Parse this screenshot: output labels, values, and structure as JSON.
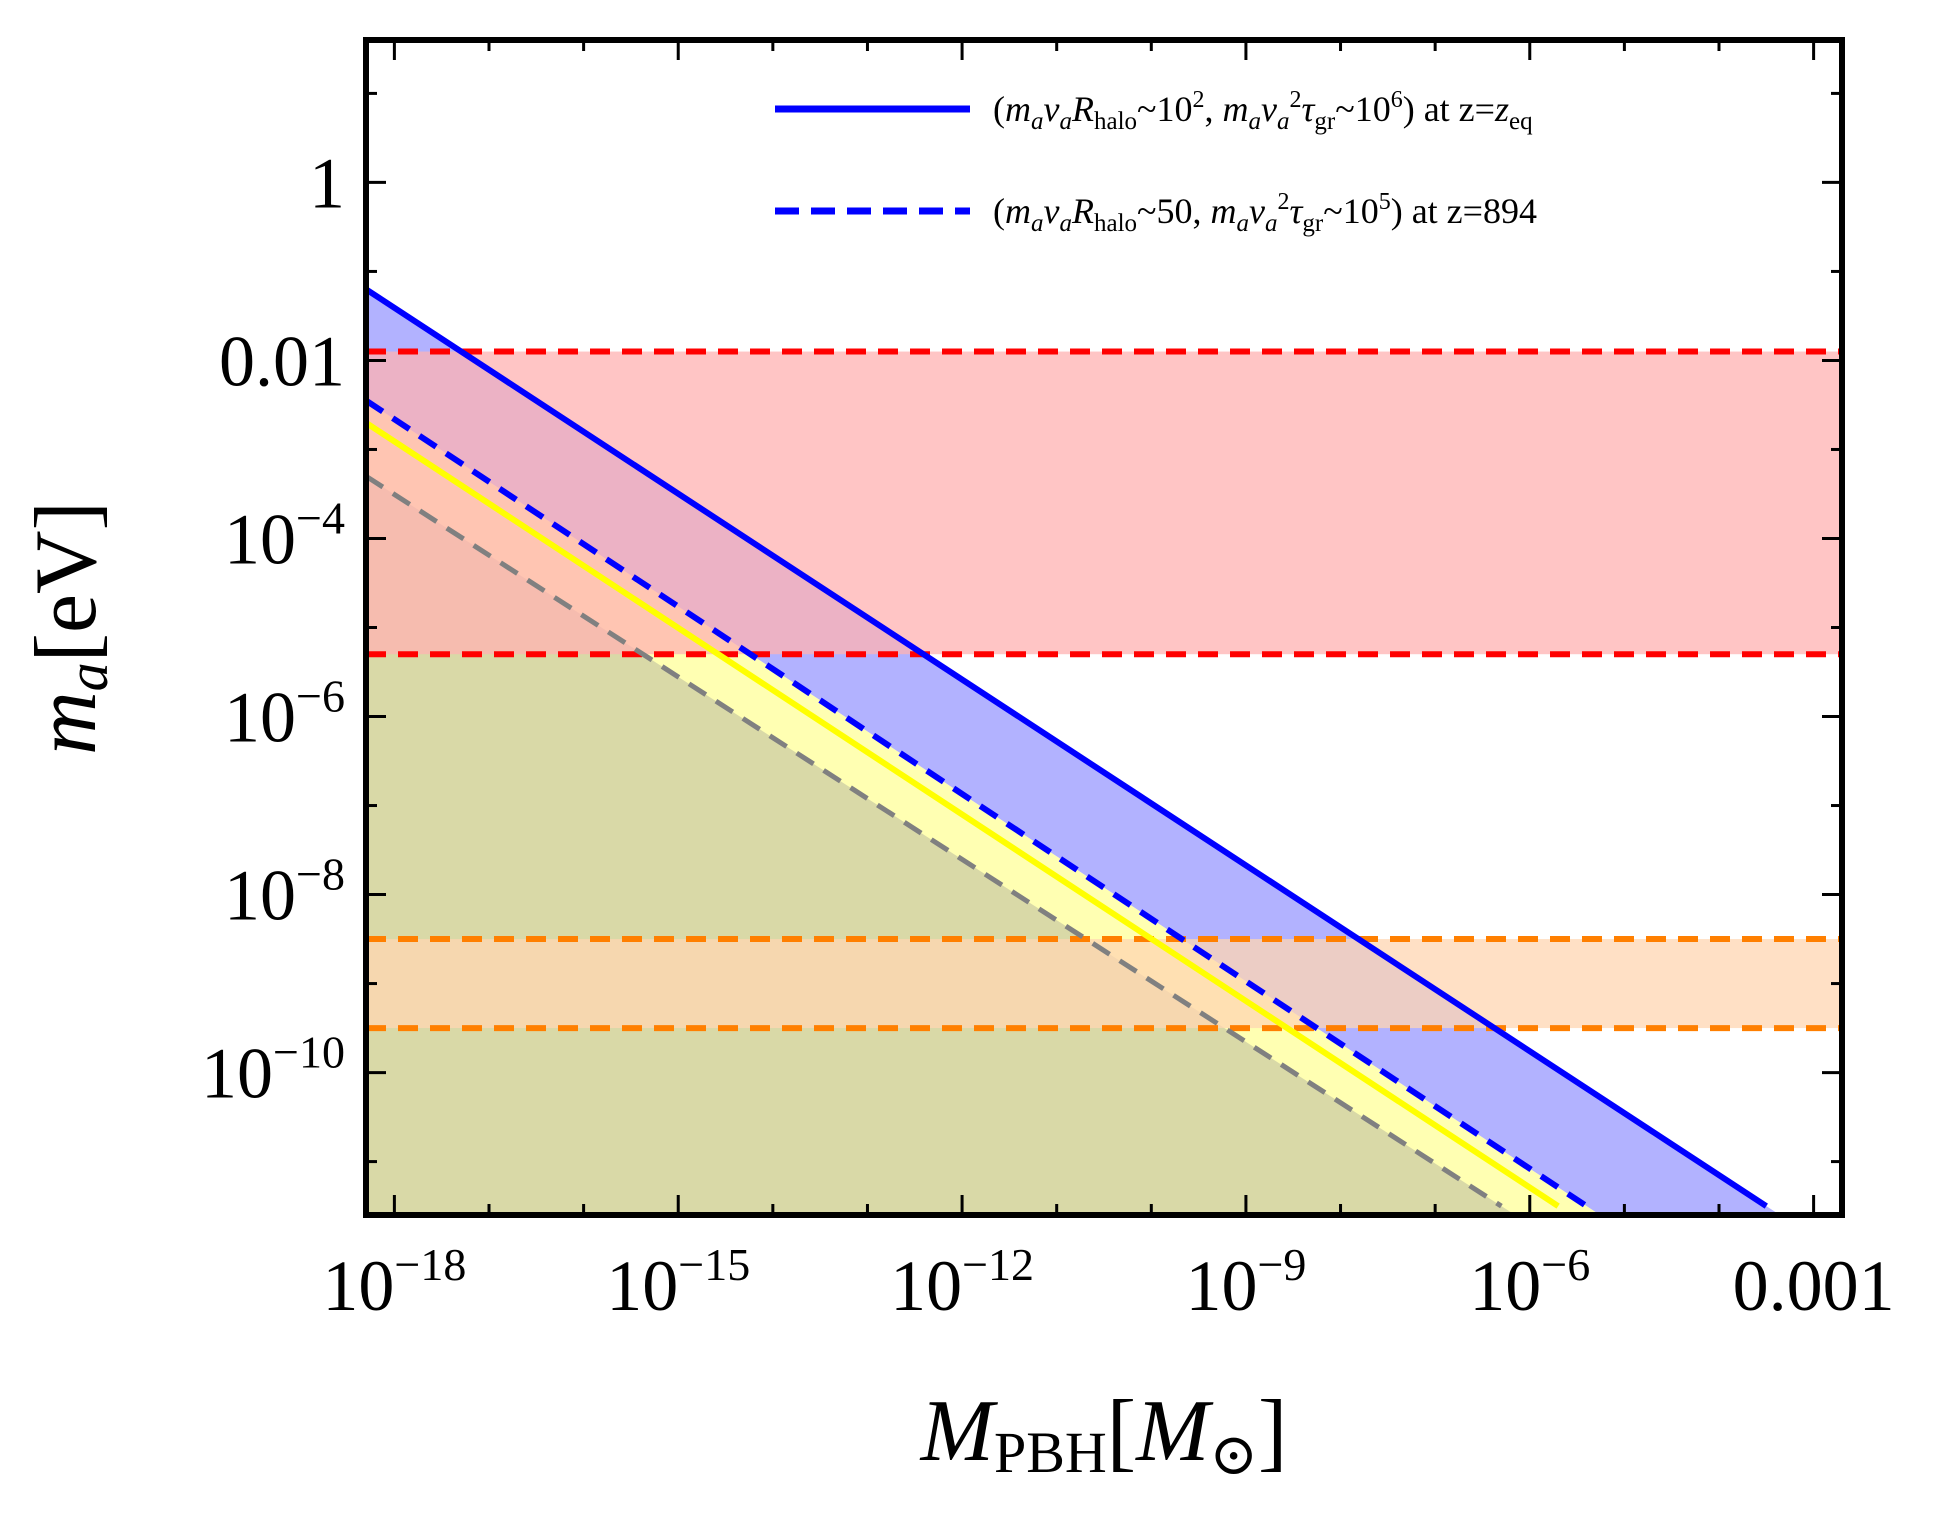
{
  "chart_data": {
    "type": "line",
    "title": "",
    "xscale": "log",
    "yscale": "log",
    "xlim_log10": [
      -18.3,
      -2.7
    ],
    "ylim_log10": [
      -11.6,
      1.6
    ],
    "xlabel": {
      "main": "M",
      "sub": "PBH",
      "unit_open": "[",
      "unit": "M",
      "unit_close": "]",
      "unit_sub": "⊙"
    },
    "ylabel": {
      "main": "m",
      "sub": "a",
      "unit": "[eV]"
    },
    "xticks": [
      {
        "log10": -18,
        "base": "10",
        "exp": "−18"
      },
      {
        "log10": -15,
        "base": "10",
        "exp": "−15"
      },
      {
        "log10": -12,
        "base": "10",
        "exp": "−12"
      },
      {
        "log10": -9,
        "base": "10",
        "exp": "−9"
      },
      {
        "log10": -6,
        "base": "10",
        "exp": "−6"
      },
      {
        "log10": -3,
        "base": "0.001",
        "exp": ""
      }
    ],
    "yticks": [
      {
        "log10": 0,
        "base": "1",
        "exp": ""
      },
      {
        "log10": -2,
        "base": "0.01",
        "exp": ""
      },
      {
        "log10": -4,
        "base": "10",
        "exp": "−4"
      },
      {
        "log10": -6,
        "base": "10",
        "exp": "−6"
      },
      {
        "log10": -8,
        "base": "10",
        "exp": "−8"
      },
      {
        "log10": -10,
        "base": "10",
        "exp": "−10"
      }
    ],
    "series": [
      {
        "name": "(m_a v_a R_halo ~ 10^2, m_a v_a^2 tau_gr ~ 10^6) at z=z_eq",
        "style": "solid",
        "color": "#0000ff",
        "x_log10": [
          -18.3,
          -3.5
        ],
        "y_log10": [
          -1.2,
          -11.5
        ]
      },
      {
        "name": "(m_a v_a R_halo ~ 50, m_a v_a^2 tau_gr ~ 10^5) at z=894",
        "style": "dashed",
        "color": "#0000ff",
        "x_log10": [
          -18.3,
          -5.4
        ],
        "y_log10": [
          -2.45,
          -11.5
        ]
      },
      {
        "name": "yellow boundary",
        "style": "solid",
        "color": "#ffff00",
        "x_log10": [
          -18.3,
          -5.7
        ],
        "y_log10": [
          -2.7,
          -11.5
        ]
      },
      {
        "name": "gray boundary",
        "style": "dashed",
        "color": "#808080",
        "x_log10": [
          -18.3,
          -6.3
        ],
        "y_log10": [
          -3.3,
          -11.5
        ]
      }
    ],
    "bands": [
      {
        "name": "red band",
        "color": "#ff0000",
        "fill": "#ffb2b2",
        "ymin_log10": -5.3,
        "ymax_log10": -1.9
      },
      {
        "name": "orange band",
        "color": "#ff7f00",
        "fill": "#ffd5b2",
        "ymin_log10": -9.5,
        "ymax_log10": -8.5
      }
    ],
    "legend": {
      "placement": "top-right",
      "entries": [
        {
          "style": "solid",
          "color": "#0000ff",
          "p1": "(",
          "m": "m",
          "m_sub": "a",
          "v": "v",
          "v_sub": "a",
          "R": "R",
          "R_sub": "halo",
          "rel1": "~10",
          "rel1_sup": "2",
          "sep": ", ",
          "m2": "m",
          "m2_sub": "a",
          "v2": "v",
          "v2_sub": "a",
          "v2_sup": "2",
          "tau": "τ",
          "tau_sub": "gr",
          "rel2": "~10",
          "rel2_sup": "6",
          "tail_text": ") at z=",
          "tail_italic": "z",
          "tail_italic_sub": "eq"
        },
        {
          "style": "dashed",
          "color": "#0000ff",
          "p1": "(",
          "m": "m",
          "m_sub": "a",
          "v": "v",
          "v_sub": "a",
          "R": "R",
          "R_sub": "halo",
          "rel1": "~50",
          "rel1_sup": "",
          "sep": ", ",
          "m2": "m",
          "m2_sub": "a",
          "v2": "v",
          "v2_sub": "a",
          "v2_sup": "2",
          "tau": "τ",
          "tau_sub": "gr",
          "rel2": "~10",
          "rel2_sup": "5",
          "tail_text": ") at z=894",
          "tail_italic": "",
          "tail_italic_sub": ""
        }
      ]
    }
  }
}
